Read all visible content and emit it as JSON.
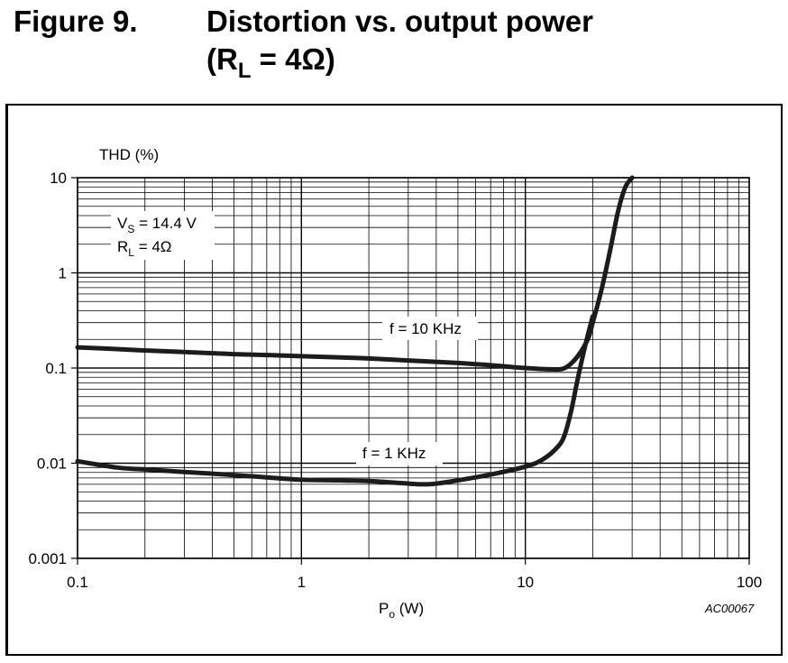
{
  "figure": {
    "number": "Figure 9.",
    "title_line1": "Distortion vs. output power",
    "title_line2_prefix": "(R",
    "title_line2_sub": "L",
    "title_line2_suffix": " = 4Ω)"
  },
  "chart_data": {
    "type": "line",
    "title": "",
    "xlabel_main": "P",
    "xlabel_sub": "o",
    "xlabel_unit": " (W)",
    "ylabel": "THD (%)",
    "xscale": "log",
    "yscale": "log",
    "xlim": [
      0.1,
      100
    ],
    "ylim": [
      0.001,
      10
    ],
    "grid": true,
    "xticks": [
      {
        "value": 0.1,
        "label": "0.1"
      },
      {
        "value": 1,
        "label": "1"
      },
      {
        "value": 10,
        "label": "10"
      },
      {
        "value": 100,
        "label": "100"
      }
    ],
    "yticks": [
      {
        "value": 10,
        "label": "10"
      },
      {
        "value": 1,
        "label": "1"
      },
      {
        "value": 0.1,
        "label": "0.1"
      },
      {
        "value": 0.01,
        "label": "0.01"
      },
      {
        "value": 0.001,
        "label": "0.001"
      }
    ],
    "conditions": {
      "vs_main": "V",
      "vs_sub": "S",
      "vs_value": " = 14.4 V",
      "rl_main": "R",
      "rl_sub": "L",
      "rl_value": " = 4Ω"
    },
    "code": "AC00067",
    "series": [
      {
        "name": "f = 10 KHz",
        "x": [
          0.1,
          0.15,
          0.2,
          0.3,
          0.5,
          0.7,
          1,
          1.5,
          2,
          3,
          5,
          7,
          10,
          13,
          15,
          17,
          19,
          20,
          22,
          24,
          26,
          28,
          30
        ],
        "y": [
          0.165,
          0.158,
          0.153,
          0.147,
          0.14,
          0.137,
          0.133,
          0.129,
          0.126,
          0.12,
          0.113,
          0.107,
          0.1,
          0.097,
          0.1,
          0.13,
          0.2,
          0.3,
          0.7,
          1.8,
          4.5,
          8,
          10
        ]
      },
      {
        "name": "f = 1 KHz",
        "x": [
          0.1,
          0.15,
          0.2,
          0.3,
          0.5,
          0.7,
          1,
          1.5,
          2,
          3,
          3.5,
          4,
          5,
          7,
          10,
          12,
          14,
          15,
          16,
          17,
          18,
          19,
          20
        ],
        "y": [
          0.0105,
          0.009,
          0.0086,
          0.0081,
          0.0075,
          0.0071,
          0.0067,
          0.0066,
          0.0065,
          0.0061,
          0.006,
          0.0061,
          0.0066,
          0.0076,
          0.0092,
          0.011,
          0.015,
          0.02,
          0.035,
          0.07,
          0.13,
          0.22,
          0.35
        ]
      }
    ]
  }
}
